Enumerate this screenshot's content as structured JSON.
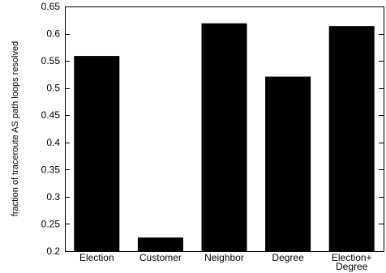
{
  "chart_data": {
    "type": "bar",
    "categories": [
      [
        "Election"
      ],
      [
        "Customer"
      ],
      [
        "Neighbor"
      ],
      [
        "Degree"
      ],
      [
        "Election+",
        "Degree"
      ]
    ],
    "values": [
      0.559,
      0.225,
      0.619,
      0.521,
      0.614
    ],
    "ylabel": "fraction of traceroute AS path loops resolved",
    "xlabel": "",
    "ylim": [
      0.2,
      0.65
    ],
    "yticks": [
      0.2,
      0.25,
      0.3,
      0.35,
      0.4,
      0.45,
      0.5,
      0.55,
      0.6,
      0.65
    ],
    "ytick_labels": [
      "0.2",
      "0.25",
      "0.3",
      "0.35",
      "0.4",
      "0.45",
      "0.5",
      "0.55",
      "0.6",
      "0.65"
    ],
    "bar_color": "#000000",
    "grid": false,
    "legend": "none"
  }
}
